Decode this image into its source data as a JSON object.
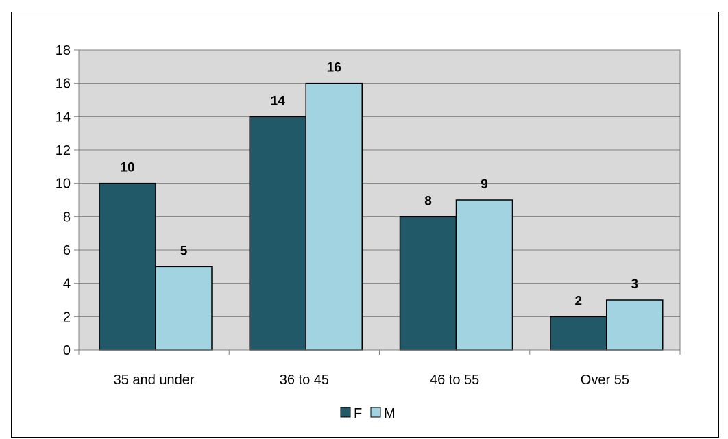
{
  "chart_data": {
    "type": "bar",
    "title": "",
    "xlabel": "",
    "ylabel": "",
    "categories": [
      "35 and under",
      "36 to 45",
      "46 to 55",
      "Over 55"
    ],
    "series": [
      {
        "name": "F",
        "values": [
          10,
          14,
          8,
          2
        ],
        "color": "#215968"
      },
      {
        "name": "M",
        "values": [
          5,
          16,
          9,
          3
        ],
        "color": "#a1d4e0"
      }
    ],
    "ylim": [
      0,
      18
    ],
    "yticks": [
      0,
      2,
      4,
      6,
      8,
      10,
      12,
      14,
      16,
      18
    ],
    "grid": true,
    "plot_background": "#d9d9d9",
    "legend": "bottom",
    "data_labels": true
  }
}
